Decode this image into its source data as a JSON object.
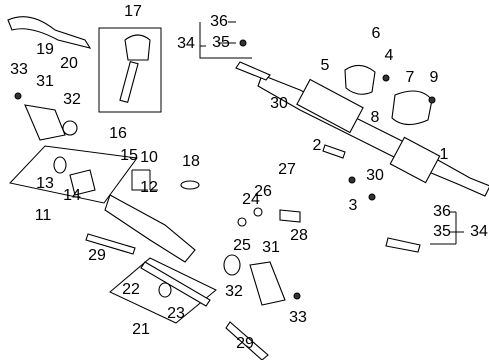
{
  "callouts": [
    "17",
    "36",
    "34",
    "35",
    "6",
    "19",
    "20",
    "5",
    "4",
    "7",
    "9",
    "33",
    "31",
    "32",
    "30",
    "8",
    "16",
    "2",
    "1",
    "15",
    "10",
    "12",
    "18",
    "27",
    "13",
    "14",
    "26",
    "24",
    "30",
    "3",
    "11",
    "36",
    "35",
    "34",
    "28",
    "25",
    "31",
    "29",
    "22",
    "32",
    "23",
    "33",
    "21",
    "29"
  ]
}
